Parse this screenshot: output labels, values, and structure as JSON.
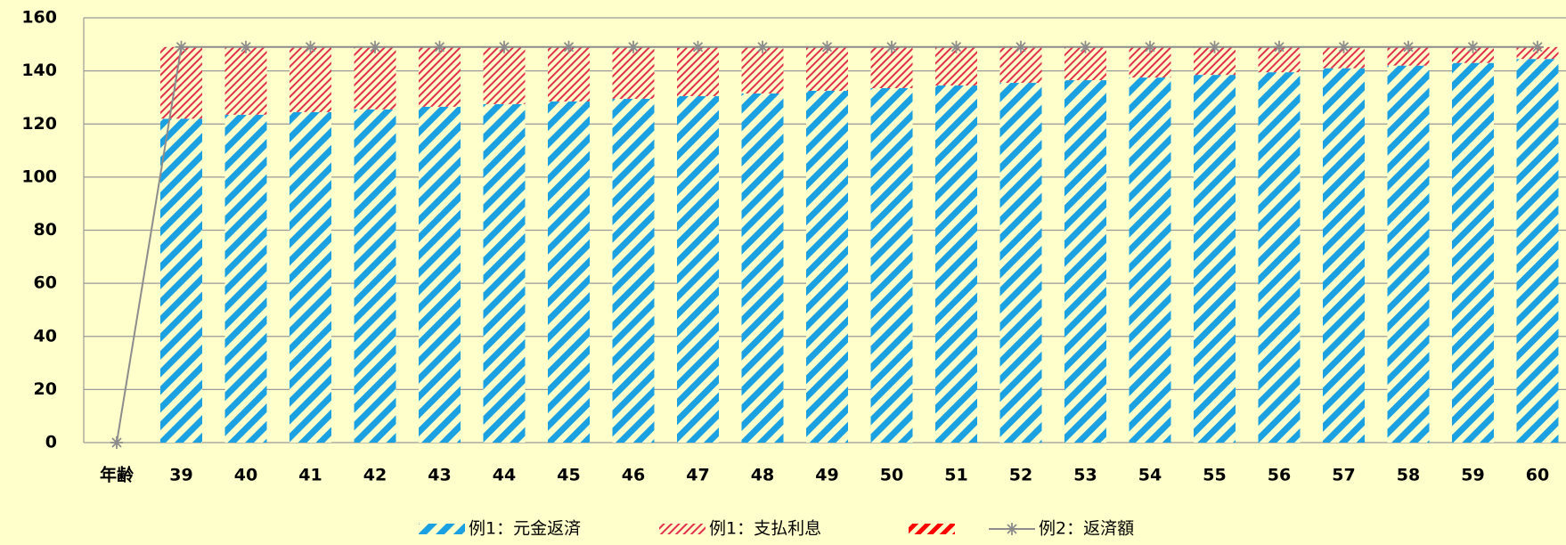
{
  "chart_data": {
    "type": "stacked-bar-line",
    "categories": [
      "年齢",
      "39",
      "40",
      "41",
      "42",
      "43",
      "44",
      "45",
      "46",
      "47",
      "48",
      "49",
      "50",
      "51",
      "52",
      "53",
      "54",
      "55",
      "56",
      "57",
      "58",
      "59",
      "60"
    ],
    "series": [
      {
        "name": "例1：元金返済",
        "color": "#1ba1e2",
        "kind": "bar",
        "values": [
          null,
          122,
          123.5,
          124.5,
          125.5,
          126.5,
          127.5,
          128.5,
          129.5,
          130.5,
          131.5,
          132.5,
          133.5,
          134.5,
          135.5,
          136.5,
          137.5,
          138.5,
          139.5,
          141,
          142,
          143,
          144.5
        ]
      },
      {
        "name": "例1：支払利息",
        "color": "#e0304a",
        "kind": "bar",
        "values": [
          null,
          27,
          25.5,
          24.5,
          23.5,
          22.5,
          21.5,
          20.5,
          19.5,
          18.5,
          17.5,
          16.5,
          15.5,
          14.5,
          13.5,
          12.5,
          11.5,
          10.5,
          9.5,
          8,
          7,
          6,
          4.5
        ]
      },
      {
        "color": "#ff0000",
        "kind": "bar",
        "values": [
          null,
          null,
          null,
          null,
          null,
          null,
          null,
          null,
          null,
          null,
          null,
          null,
          null,
          null,
          null,
          null,
          null,
          null,
          null,
          null,
          null,
          null,
          null
        ]
      },
      {
        "name": "例2：返済額",
        "color": "#8c8c8c",
        "kind": "line",
        "values": [
          0,
          149,
          149,
          149,
          149,
          149,
          149,
          149,
          149,
          149,
          149,
          149,
          149,
          149,
          149,
          149,
          149,
          149,
          149,
          149,
          149,
          149,
          149
        ]
      }
    ],
    "ylim": [
      0,
      160
    ],
    "yticks": [
      0,
      20,
      40,
      60,
      80,
      100,
      120,
      140,
      160
    ],
    "grid": true,
    "legend": "bottom"
  }
}
